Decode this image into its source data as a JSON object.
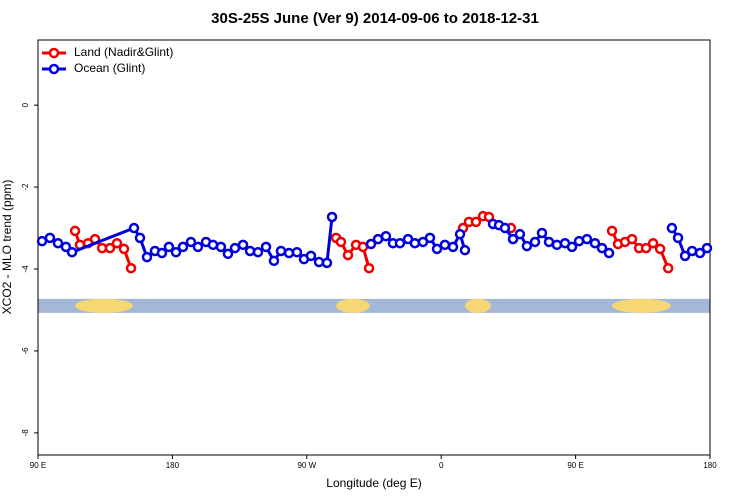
{
  "chart_data": {
    "type": "line",
    "title": "30S-25S June (Ver 9)   2014-09-06 to 2018-12-31",
    "x_label": "Longitude (deg E)",
    "y_label": "XCO2 - MLO trend (ppm)",
    "xlim": [
      90,
      540
    ],
    "ylim": [
      -8.54,
      1.59
    ],
    "xticks": [
      {
        "value": 90,
        "label": "90 E"
      },
      {
        "value": 180,
        "label": "180"
      },
      {
        "value": 270,
        "label": "90 W"
      },
      {
        "value": 360,
        "label": "0"
      },
      {
        "value": 450,
        "label": "90 E"
      },
      {
        "value": 540,
        "label": "180"
      }
    ],
    "yticks": [
      0,
      -2,
      -4,
      -6,
      -8
    ],
    "legend": "top-left",
    "band_y": -4.9,
    "band_color": "#a3b8d8",
    "land_color": "#f7d774",
    "land_spans": [
      [
        114.8,
        153.6
      ],
      [
        289.6,
        312.3
      ],
      [
        375.9,
        393.3
      ],
      [
        474.4,
        513.9
      ]
    ],
    "series": [
      {
        "name": "Land (Nadir&Glint)",
        "color": "#ee0000",
        "x": [
          114.8,
          118.1,
          123.5,
          128.2,
          132.9,
          138.2,
          142.9,
          147.6,
          152.3,
          null,
          289.6,
          292.9,
          297.6,
          303.0,
          307.6,
          311.7,
          null,
          374.6,
          378.6,
          383.3,
          388.0,
          392.0,
          null,
          406.7,
          null,
          474.4,
          478.4,
          483.1,
          487.8,
          492.5,
          497.2,
          501.9,
          506.6,
          512.0
        ],
        "values": [
          -3.07,
          -3.41,
          -3.37,
          -3.27,
          -3.49,
          -3.49,
          -3.37,
          -3.51,
          -3.98,
          null,
          -3.24,
          -3.34,
          -3.66,
          -3.41,
          -3.46,
          -3.98,
          null,
          -3.0,
          -2.85,
          -2.85,
          -2.71,
          -2.73,
          null,
          -3.0,
          null,
          -3.07,
          -3.39,
          -3.34,
          -3.27,
          -3.49,
          -3.49,
          -3.37,
          -3.51,
          -3.98
        ]
      },
      {
        "name": "Ocean (Glint)",
        "color": "#0000dd",
        "x": [
          92.7,
          98.0,
          103.4,
          108.7,
          112.8,
          154.3,
          158.3,
          163.0,
          168.3,
          173.0,
          177.7,
          182.4,
          187.1,
          192.4,
          197.1,
          202.5,
          207.2,
          212.5,
          217.2,
          221.9,
          227.3,
          232.0,
          237.3,
          242.7,
          248.0,
          252.7,
          258.1,
          263.4,
          268.1,
          272.8,
          278.2,
          283.5,
          286.9,
          null,
          313.0,
          317.7,
          323.0,
          327.7,
          332.4,
          337.8,
          342.4,
          347.8,
          352.5,
          357.2,
          362.5,
          367.9,
          372.6,
          375.9,
          null,
          394.7,
          398.7,
          402.7,
          408.1,
          412.7,
          417.4,
          422.8,
          427.5,
          432.2,
          437.5,
          442.9,
          447.6,
          452.3,
          457.6,
          463.0,
          467.7,
          472.4,
          null,
          514.5,
          518.6,
          523.3,
          528.0,
          533.3,
          538.0
        ],
        "values": [
          -3.32,
          -3.24,
          -3.37,
          -3.46,
          -3.59,
          -3.0,
          -3.24,
          -3.71,
          -3.56,
          -3.61,
          -3.46,
          -3.59,
          -3.46,
          -3.34,
          -3.46,
          -3.34,
          -3.41,
          -3.46,
          -3.63,
          -3.49,
          -3.41,
          -3.56,
          -3.59,
          -3.46,
          -3.8,
          -3.56,
          -3.61,
          -3.59,
          -3.76,
          -3.68,
          -3.83,
          -3.85,
          -2.73,
          null,
          -3.39,
          -3.27,
          -3.2,
          -3.37,
          -3.37,
          -3.27,
          -3.37,
          -3.34,
          -3.24,
          -3.51,
          -3.41,
          -3.46,
          -3.15,
          -3.54,
          null,
          -2.9,
          -2.93,
          -3.0,
          -3.27,
          -3.15,
          -3.44,
          -3.34,
          -3.12,
          -3.34,
          -3.41,
          -3.37,
          -3.46,
          -3.32,
          -3.27,
          -3.37,
          -3.49,
          -3.61,
          null,
          -3.0,
          -3.24,
          -3.68,
          -3.56,
          -3.61,
          -3.49
        ]
      }
    ]
  }
}
